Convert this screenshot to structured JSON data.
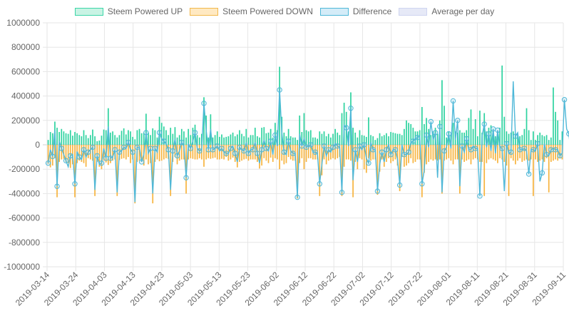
{
  "chart_data": {
    "type": "bar-line",
    "legend": [
      {
        "label": "Steem Powered UP",
        "fill": "#c8f3e4",
        "stroke": "#3dd6a8"
      },
      {
        "label": "Steem Powered DOWN",
        "fill": "#ffe9c2",
        "stroke": "#f2b84b"
      },
      {
        "label": "Difference",
        "fill": "#d4ecf8",
        "stroke": "#4fb8d8"
      },
      {
        "label": "Average per day",
        "fill": "#e6e9f7",
        "stroke": "#cfd5f0"
      }
    ],
    "colors": {
      "up": "#2fd3a0",
      "down": "#f7b43f",
      "diff_line": "#4fb8d8",
      "grid": "#e6e6e6",
      "axis_text": "#666666"
    },
    "ylim": [
      -1000000,
      1000000
    ],
    "yticks": [
      -1000000,
      -800000,
      -600000,
      -400000,
      -200000,
      0,
      200000,
      400000,
      600000,
      800000,
      1000000
    ],
    "ytick_labels": [
      "-1000000",
      "-800000",
      "-600000",
      "-400000",
      "-200000",
      "0",
      "200000",
      "400000",
      "600000",
      "800000",
      "1000000"
    ],
    "x_tick_labels": [
      "2019-03-14",
      "2019-03-24",
      "2019-04-03",
      "2019-04-13",
      "2019-04-23",
      "2019-05-03",
      "2019-05-13",
      "2019-05-23",
      "2019-06-02",
      "2019-06-12",
      "2019-06-22",
      "2019-07-02",
      "2019-07-12",
      "2019-07-22",
      "2019-08-01",
      "2019-08-11",
      "2019-08-21",
      "2019-08-31",
      "2019-09-11"
    ],
    "start_date": "2019-03-14",
    "end_date": "2019-09-11",
    "series": [
      {
        "name": "Steem Powered UP",
        "values": [
          40000,
          105000,
          95000,
          190000,
          140000,
          105000,
          130000,
          110000,
          95000,
          90000,
          120000,
          75000,
          105000,
          95000,
          80000,
          70000,
          120000,
          80000,
          55000,
          80000,
          125000,
          70000,
          30000,
          35000,
          75000,
          125000,
          120000,
          300000,
          100000,
          110000,
          80000,
          60000,
          80000,
          115000,
          135000,
          85000,
          120000,
          110000,
          65000,
          45000,
          120000,
          130000,
          95000,
          100000,
          255000,
          100000,
          80000,
          135000,
          120000,
          60000,
          230000,
          180000,
          150000,
          120000,
          80000,
          140000,
          90000,
          145000,
          60000,
          80000,
          130000,
          110000,
          60000,
          130000,
          80000,
          140000,
          165000,
          80000,
          60000,
          90000,
          390000,
          240000,
          60000,
          250000,
          60000,
          80000,
          110000,
          65000,
          85000,
          60000,
          65000,
          70000,
          85000,
          100000,
          70000,
          85000,
          120000,
          90000,
          70000,
          130000,
          60000,
          80000,
          80000,
          140000,
          70000,
          60000,
          140000,
          145000,
          95000,
          100000,
          130000,
          60000,
          180000,
          120000,
          640000,
          230000,
          100000,
          70000,
          130000,
          70000,
          60000,
          60000,
          40000,
          240000,
          105000,
          260000,
          120000,
          110000,
          120000,
          60000,
          60000,
          50000,
          110000,
          90000,
          110000,
          70000,
          90000,
          60000,
          90000,
          130000,
          100000,
          80000,
          260000,
          345000,
          270000,
          110000,
          430000,
          140000,
          100000,
          60000,
          120000,
          80000,
          75000,
          65000,
          225000,
          80000,
          70000,
          40000,
          55000,
          95000,
          70000,
          80000,
          95000,
          70000,
          105000,
          100000,
          95000,
          90000,
          90000,
          80000,
          130000,
          200000,
          180000,
          170000,
          140000,
          110000,
          110000,
          120000,
          310000,
          170000,
          220000,
          130000,
          80000,
          110000,
          140000,
          90000,
          200000,
          530000,
          320000,
          60000,
          110000,
          80000,
          180000,
          110000,
          100000,
          120000,
          100000,
          100000,
          120000,
          220000,
          290000,
          130000,
          210000,
          70000,
          280000,
          100000,
          260000,
          110000,
          140000,
          160000,
          130000,
          70000,
          90000,
          140000,
          650000,
          230000,
          110000,
          90000,
          100000,
          110000,
          80000,
          90000,
          70000,
          80000,
          130000,
          300000,
          120000,
          40000,
          110000,
          40000,
          80000,
          100000,
          80000,
          70000,
          80000,
          40000,
          60000,
          470000,
          270000,
          200000,
          40000,
          110000
        ]
      },
      {
        "name": "Steem Powered DOWN",
        "values": [
          -155000,
          -185000,
          -170000,
          -110000,
          -430000,
          -140000,
          -120000,
          -115000,
          -140000,
          -150000,
          -190000,
          -160000,
          -430000,
          -150000,
          -130000,
          -140000,
          -150000,
          -180000,
          -110000,
          -120000,
          -130000,
          -420000,
          -140000,
          -180000,
          -200000,
          -130000,
          -145000,
          -165000,
          -150000,
          -130000,
          -120000,
          -420000,
          -125000,
          -115000,
          -110000,
          -120000,
          -100000,
          -150000,
          -120000,
          -480000,
          -140000,
          -130000,
          -140000,
          -170000,
          -120000,
          -160000,
          -150000,
          -480000,
          -140000,
          -120000,
          -135000,
          -130000,
          -120000,
          -110000,
          -115000,
          -420000,
          -140000,
          -100000,
          -160000,
          -130000,
          -120000,
          -120000,
          -400000,
          -120000,
          -110000,
          -115000,
          -120000,
          -120000,
          -110000,
          -120000,
          -180000,
          -120000,
          -110000,
          -115000,
          -110000,
          -105000,
          -120000,
          -120000,
          -115000,
          -120000,
          -100000,
          -130000,
          -120000,
          -105000,
          -140000,
          -185000,
          -140000,
          -130000,
          -120000,
          -115000,
          -130000,
          -120000,
          -120000,
          -120000,
          -140000,
          -195000,
          -170000,
          -110000,
          -130000,
          -150000,
          -105000,
          -140000,
          -110000,
          -120000,
          -200000,
          -130000,
          -160000,
          -150000,
          -100000,
          -120000,
          -130000,
          -130000,
          -440000,
          -150000,
          -110000,
          -200000,
          -140000,
          -110000,
          -110000,
          -120000,
          -120000,
          -120000,
          -420000,
          -250000,
          -120000,
          -160000,
          -130000,
          -120000,
          -110000,
          -120000,
          -110000,
          -100000,
          -420000,
          -180000,
          -120000,
          -120000,
          -130000,
          -430000,
          -140000,
          -200000,
          -110000,
          -120000,
          -200000,
          -230000,
          -110000,
          -130000,
          -120000,
          -120000,
          -410000,
          -220000,
          -120000,
          -180000,
          -140000,
          -110000,
          -150000,
          -135000,
          -120000,
          -170000,
          -380000,
          -100000,
          -180000,
          -170000,
          -150000,
          -110000,
          -150000,
          -140000,
          -120000,
          -120000,
          -430000,
          -230000,
          -160000,
          -140000,
          -120000,
          -130000,
          -120000,
          -130000,
          -120000,
          -400000,
          -130000,
          -120000,
          -110000,
          -130000,
          -160000,
          -120000,
          -120000,
          -400000,
          -120000,
          -140000,
          -130000,
          -120000,
          -160000,
          -120000,
          -110000,
          -120000,
          -140000,
          -140000,
          -420000,
          -150000,
          -120000,
          -110000,
          -120000,
          -130000,
          -150000,
          -110000,
          -120000,
          -140000,
          -170000,
          -420000,
          -110000,
          -130000,
          -160000,
          -130000,
          -110000,
          -140000,
          -130000,
          -120000,
          -130000,
          -120000,
          -420000,
          -120000,
          -140000,
          -130000,
          -120000,
          -140000,
          -110000,
          -390000,
          -140000,
          -130000,
          -120000,
          -130000,
          -110000,
          -120000,
          -120000,
          -130000,
          -110000,
          -100000,
          -120000
        ]
      },
      {
        "name": "Difference",
        "values": [
          -150000,
          -40000,
          -95000,
          120000,
          -340000,
          30000,
          -30000,
          -80000,
          -130000,
          -180000,
          -90000,
          -80000,
          -320000,
          -55000,
          -100000,
          -120000,
          -40000,
          -100000,
          -60000,
          -40000,
          -20000,
          -370000,
          -90000,
          -160000,
          -150000,
          -30000,
          -110000,
          150000,
          -110000,
          -100000,
          -40000,
          -390000,
          -60000,
          -50000,
          -20000,
          -30000,
          20000,
          -40000,
          -60000,
          -470000,
          -20000,
          -20000,
          -140000,
          -80000,
          100000,
          -70000,
          -30000,
          -400000,
          -30000,
          -60000,
          100000,
          50000,
          30000,
          10000,
          -40000,
          -370000,
          -50000,
          50000,
          -90000,
          -50000,
          20000,
          -10000,
          -270000,
          10000,
          -30000,
          30000,
          100000,
          -30000,
          -50000,
          -40000,
          340000,
          120000,
          -40000,
          130000,
          -40000,
          -30000,
          -10000,
          -50000,
          -30000,
          -60000,
          -70000,
          -70000,
          -30000,
          -10000,
          -70000,
          -140000,
          -20000,
          -40000,
          -50000,
          20000,
          -70000,
          -40000,
          -40000,
          20000,
          -70000,
          -150000,
          -40000,
          40000,
          -30000,
          -50000,
          30000,
          -80000,
          80000,
          -10000,
          450000,
          100000,
          -60000,
          -80000,
          30000,
          -50000,
          -70000,
          -70000,
          -430000,
          90000,
          -10000,
          50000,
          -20000,
          -10000,
          0,
          -60000,
          -60000,
          -70000,
          -320000,
          -160000,
          -10000,
          -90000,
          -40000,
          -60000,
          -20000,
          10000,
          -10000,
          -20000,
          -390000,
          160000,
          140000,
          -10000,
          300000,
          -290000,
          -40000,
          -140000,
          -10000,
          -40000,
          0,
          -110000,
          -150000,
          20000,
          -40000,
          -40000,
          -380000,
          -160000,
          -60000,
          -140000,
          -40000,
          0,
          -80000,
          -40000,
          -40000,
          -120000,
          -330000,
          0,
          -80000,
          -80000,
          -60000,
          20000,
          30000,
          50000,
          60000,
          70000,
          -320000,
          -210000,
          80000,
          -20000,
          190000,
          40000,
          100000,
          -270000,
          150000,
          -390000,
          -50000,
          -20000,
          90000,
          -30000,
          360000,
          40000,
          200000,
          -340000,
          -10000,
          -60000,
          50000,
          -40000,
          -40000,
          -10000,
          -30000,
          -30000,
          -420000,
          70000,
          170000,
          -20000,
          90000,
          -50000,
          130000,
          -70000,
          120000,
          -20000,
          -30000,
          -380000,
          10000,
          -70000,
          -60000,
          520000,
          70000,
          100000,
          -40000,
          -40000,
          -30000,
          -50000,
          -240000,
          -40000,
          -40000,
          -50000,
          10000,
          -300000,
          -230000,
          10000,
          -80000,
          -90000,
          -40000,
          -30000,
          -40000,
          -40000,
          -90000,
          -70000,
          370000,
          130000,
          90000,
          -80000,
          -20000
        ]
      }
    ]
  }
}
